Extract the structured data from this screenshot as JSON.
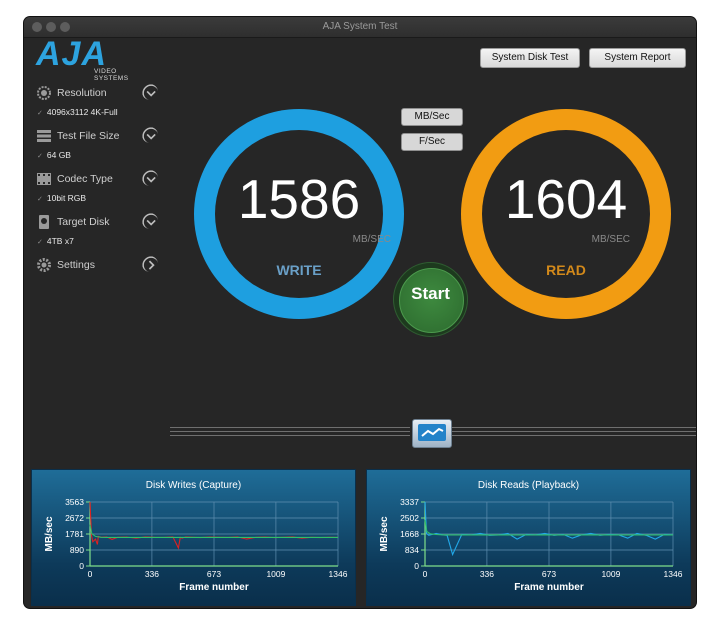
{
  "window": {
    "title": "AJA System Test"
  },
  "logo": {
    "brand": "AJA",
    "tagline": "VIDEO SYSTEMS"
  },
  "sidebar": {
    "items": [
      {
        "label": "Resolution",
        "value": "4096x3112 4K-Full",
        "icon": "resolution-icon"
      },
      {
        "label": "Test File Size",
        "value": "64 GB",
        "icon": "stack-icon"
      },
      {
        "label": "Codec Type",
        "value": "10bit RGB",
        "icon": "film-icon"
      },
      {
        "label": "Target Disk",
        "value": "4TB x7",
        "icon": "disk-icon"
      },
      {
        "label": "Settings",
        "value": "",
        "icon": "gear-icon"
      }
    ]
  },
  "toolbar": {
    "system_disk_test": "System Disk Test",
    "system_report": "System Report"
  },
  "units": {
    "mbsec": "MB/Sec",
    "fsec": "F/Sec"
  },
  "gauges": {
    "write": {
      "value": "1586",
      "unit": "MB/SEC",
      "label": "WRITE",
      "color": "#1e9fe0"
    },
    "read": {
      "value": "1604",
      "unit": "MB/SEC",
      "label": "READ",
      "color": "#f29c12"
    }
  },
  "start_label": "Start",
  "chart_data": [
    {
      "type": "line",
      "title": "Disk Writes (Capture)",
      "xlabel": "Frame number",
      "ylabel": "MB/sec",
      "xticks": [
        0,
        336,
        673,
        1009,
        1346
      ],
      "yticks": [
        0,
        890,
        1781,
        2672,
        3563
      ],
      "xlim": [
        0,
        1346
      ],
      "ylim": [
        0,
        3563
      ],
      "series": [
        {
          "color": "#e02020",
          "x": [
            0,
            8,
            15,
            30,
            40,
            45,
            60,
            90,
            120,
            150,
            200,
            250,
            300,
            350,
            400,
            450,
            480,
            490,
            500,
            520,
            560,
            600,
            650,
            700,
            750,
            800,
            850,
            900,
            950,
            1000,
            1050,
            1100,
            1150,
            1200,
            1250,
            1300,
            1346
          ],
          "y": [
            3563,
            1700,
            1350,
            1500,
            1200,
            1650,
            1600,
            1620,
            1480,
            1600,
            1610,
            1550,
            1620,
            1600,
            1590,
            1620,
            1000,
            1600,
            1550,
            1620,
            1600,
            1580,
            1610,
            1600,
            1590,
            1620,
            1500,
            1600,
            1610,
            1580,
            1600,
            1620,
            1550,
            1600,
            1580,
            1600,
            1590
          ]
        },
        {
          "color": "#2fbf6a",
          "x": [
            0,
            10,
            30,
            60,
            100,
            200,
            400,
            600,
            800,
            1000,
            1200,
            1346
          ],
          "y": [
            2300,
            1800,
            1650,
            1600,
            1590,
            1590,
            1590,
            1590,
            1590,
            1590,
            1590,
            1590
          ]
        }
      ]
    },
    {
      "type": "line",
      "title": "Disk Reads (Playback)",
      "xlabel": "Frame number",
      "ylabel": "MB/sec",
      "xticks": [
        0,
        336,
        673,
        1009,
        1346
      ],
      "yticks": [
        0,
        834,
        1668,
        2502,
        3337
      ],
      "xlim": [
        0,
        1346
      ],
      "ylim": [
        0,
        3337
      ],
      "series": [
        {
          "color": "#22a8e8",
          "x": [
            0,
            8,
            20,
            40,
            60,
            100,
            120,
            150,
            200,
            250,
            300,
            350,
            400,
            450,
            500,
            550,
            600,
            650,
            700,
            750,
            800,
            850,
            900,
            950,
            1000,
            1050,
            1100,
            1150,
            1200,
            1250,
            1300,
            1346
          ],
          "y": [
            3337,
            1700,
            1600,
            1650,
            1700,
            1620,
            1600,
            600,
            1650,
            1620,
            1700,
            1600,
            1620,
            1700,
            1400,
            1650,
            1620,
            1700,
            1600,
            1650,
            1450,
            1620,
            1700,
            1600,
            1650,
            1620,
            1450,
            1700,
            1600,
            1400,
            1650,
            1620
          ]
        },
        {
          "color": "#2fbf6a",
          "x": [
            0,
            10,
            30,
            60,
            100,
            200,
            400,
            600,
            800,
            1000,
            1200,
            1346
          ],
          "y": [
            2400,
            1800,
            1680,
            1640,
            1620,
            1620,
            1620,
            1620,
            1620,
            1620,
            1620,
            1620
          ]
        }
      ]
    }
  ]
}
